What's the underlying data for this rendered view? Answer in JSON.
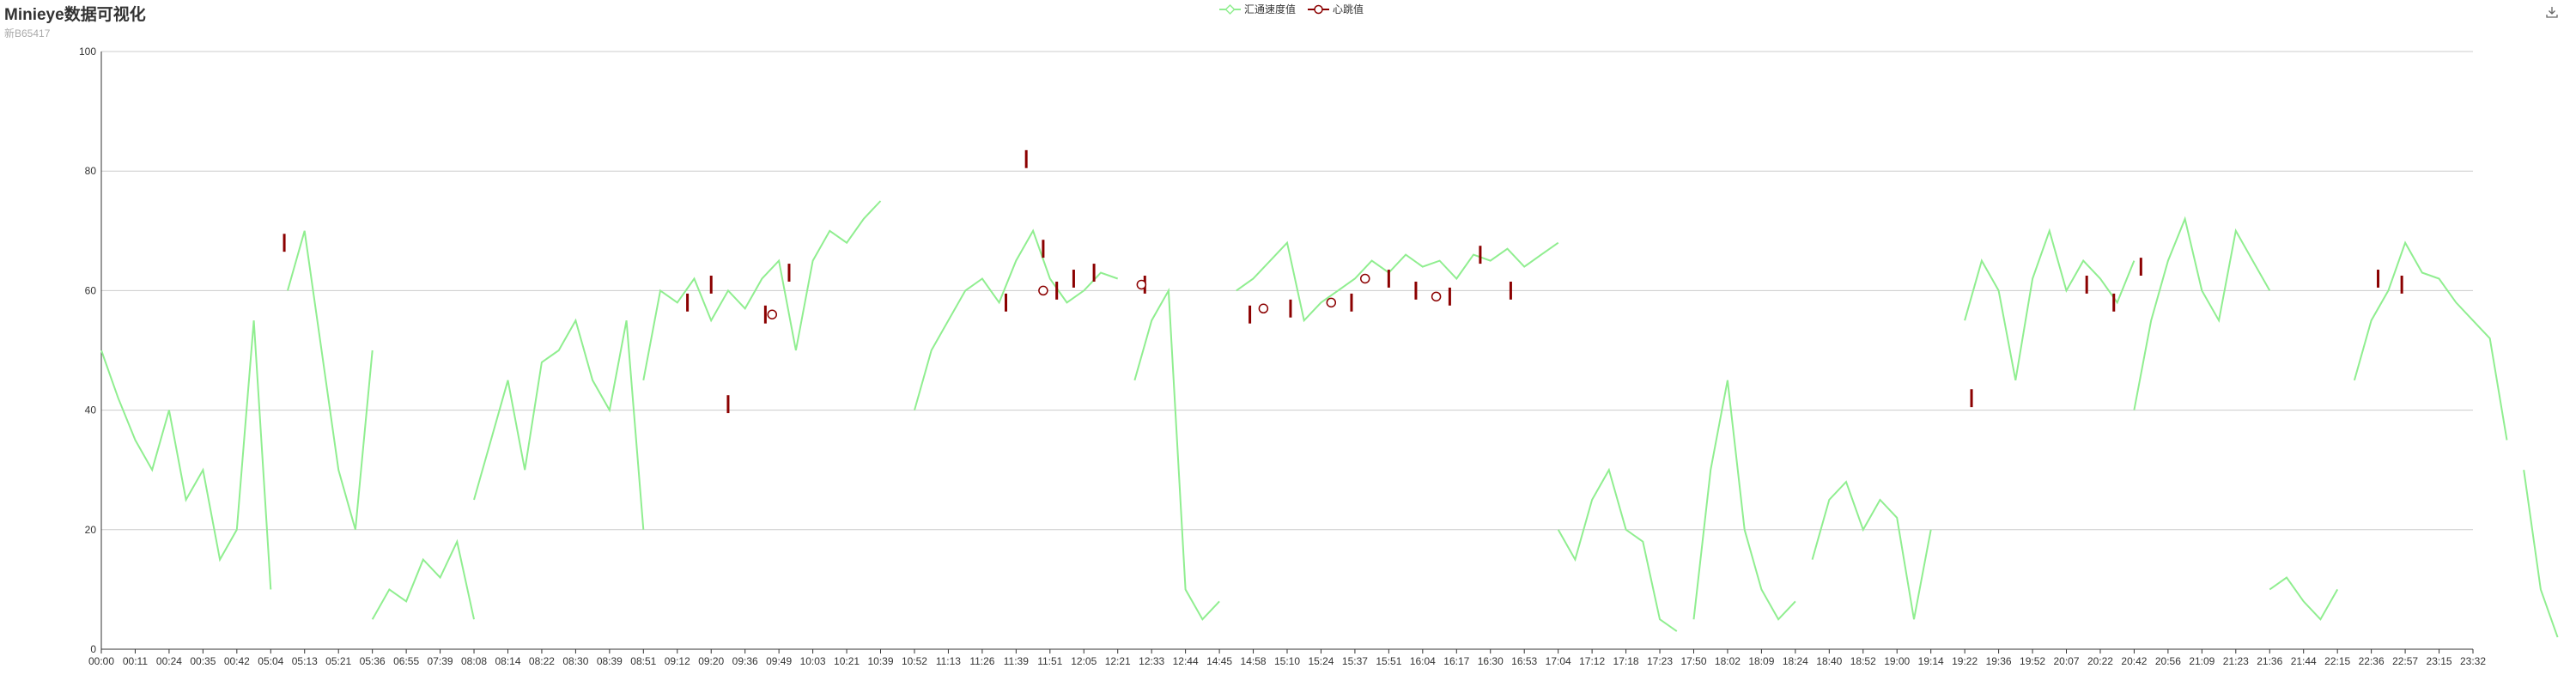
{
  "header": {
    "title": "Minieye数据可视化",
    "subtitle": "新B65417"
  },
  "legend": {
    "items": [
      {
        "label": "汇通速度值",
        "color": "#90ee90"
      },
      {
        "label": "心跳值",
        "color": "#8b0000"
      }
    ]
  },
  "toolbar": {
    "save_icon": "download-icon"
  },
  "chart_data": {
    "type": "line",
    "title": "Minieye数据可视化",
    "subtitle": "新B65417",
    "xlabel": "",
    "ylabel": "",
    "ylim": [
      0,
      100
    ],
    "yticks": [
      0,
      20,
      40,
      60,
      80,
      100
    ],
    "grid": true,
    "legend_position": "top-center",
    "xticks": [
      "00:00",
      "00:11",
      "00:24",
      "00:35",
      "00:42",
      "05:04",
      "05:13",
      "05:21",
      "05:36",
      "06:55",
      "07:39",
      "08:08",
      "08:14",
      "08:22",
      "08:30",
      "08:39",
      "08:51",
      "09:12",
      "09:20",
      "09:36",
      "09:49",
      "10:03",
      "10:21",
      "10:39",
      "10:52",
      "11:13",
      "11:26",
      "11:39",
      "11:51",
      "12:05",
      "12:21",
      "12:33",
      "12:44",
      "14:45",
      "14:58",
      "15:10",
      "15:24",
      "15:37",
      "15:51",
      "16:04",
      "16:17",
      "16:30",
      "16:53",
      "17:04",
      "17:12",
      "17:18",
      "17:23",
      "17:50",
      "18:02",
      "18:09",
      "18:24",
      "18:40",
      "18:52",
      "19:00",
      "19:14",
      "19:22",
      "19:36",
      "19:52",
      "20:07",
      "20:22",
      "20:42",
      "20:56",
      "21:09",
      "21:23",
      "21:36",
      "21:44",
      "22:15",
      "22:36",
      "22:57",
      "23:15",
      "23:32"
    ],
    "series": [
      {
        "name": "汇通速度值",
        "color": "#90ee90",
        "segments": [
          {
            "x": [
              0,
              0.5,
              1,
              1.5,
              2,
              2.5,
              3,
              3.5,
              4,
              4.5,
              5
            ],
            "y": [
              50,
              42,
              35,
              30,
              40,
              25,
              30,
              15,
              20,
              55,
              10
            ]
          },
          {
            "x": [
              5.5,
              6,
              6.5,
              7,
              7.5,
              8
            ],
            "y": [
              60,
              70,
              50,
              30,
              20,
              50
            ]
          },
          {
            "x": [
              8,
              8.5,
              9,
              9.5,
              10,
              10.5,
              11
            ],
            "y": [
              5,
              10,
              8,
              15,
              12,
              18,
              5
            ]
          },
          {
            "x": [
              11,
              11.5,
              12,
              12.5,
              13,
              13.5,
              14,
              14.5,
              15,
              15.5,
              16
            ],
            "y": [
              25,
              35,
              45,
              30,
              48,
              50,
              55,
              45,
              40,
              55,
              20
            ]
          },
          {
            "x": [
              16,
              16.5,
              17,
              17.5,
              18,
              18.5,
              19,
              19.5,
              20,
              20.5,
              21,
              21.5,
              22,
              22.5,
              23
            ],
            "y": [
              45,
              60,
              58,
              62,
              55,
              60,
              57,
              62,
              65,
              50,
              65,
              70,
              68,
              72,
              75
            ]
          },
          {
            "x": [
              24,
              24.5,
              25,
              25.5,
              26,
              26.5,
              27,
              27.5,
              28,
              28.5,
              29,
              29.5,
              30
            ],
            "y": [
              40,
              50,
              55,
              60,
              62,
              58,
              65,
              70,
              62,
              58,
              60,
              63,
              62
            ]
          },
          {
            "x": [
              30.5,
              31,
              31.5,
              32,
              32.5,
              33
            ],
            "y": [
              45,
              55,
              60,
              10,
              5,
              8
            ]
          },
          {
            "x": [
              33.5,
              34,
              34.5,
              35,
              35.5,
              36,
              36.5,
              37,
              37.5,
              38,
              38.5,
              39,
              39.5,
              40,
              40.5,
              41,
              41.5,
              42,
              42.5,
              43
            ],
            "y": [
              60,
              62,
              65,
              68,
              55,
              58,
              60,
              62,
              65,
              63,
              66,
              64,
              65,
              62,
              66,
              65,
              67,
              64,
              66,
              68
            ]
          },
          {
            "x": [
              43,
              43.5,
              44,
              44.5,
              45,
              45.5,
              46,
              46.5
            ],
            "y": [
              20,
              15,
              25,
              30,
              20,
              18,
              5,
              3
            ]
          },
          {
            "x": [
              47,
              47.5,
              48,
              48.5,
              49,
              49.5,
              50
            ],
            "y": [
              5,
              30,
              45,
              20,
              10,
              5,
              8
            ]
          },
          {
            "x": [
              50.5,
              51,
              51.5,
              52,
              52.5,
              53,
              53.5,
              54
            ],
            "y": [
              15,
              25,
              28,
              20,
              25,
              22,
              5,
              20
            ]
          },
          {
            "x": [
              55,
              55.5,
              56,
              56.5,
              57,
              57.5,
              58,
              58.5,
              59,
              59.5,
              60
            ],
            "y": [
              55,
              65,
              60,
              45,
              62,
              70,
              60,
              65,
              62,
              58,
              65
            ]
          },
          {
            "x": [
              60,
              60.5,
              61,
              61.5,
              62,
              62.5,
              63,
              63.5,
              64
            ],
            "y": [
              40,
              55,
              65,
              72,
              60,
              55,
              70,
              65,
              60
            ]
          },
          {
            "x": [
              64,
              64.5,
              65,
              65.5,
              66
            ],
            "y": [
              10,
              12,
              8,
              5,
              10
            ]
          },
          {
            "x": [
              66.5,
              67,
              67.5,
              68,
              68.5,
              69,
              69.5,
              70,
              70.5,
              71
            ],
            "y": [
              45,
              55,
              60,
              68,
              63,
              62,
              58,
              55,
              52,
              35
            ]
          },
          {
            "x": [
              71.5,
              72,
              72.5
            ],
            "y": [
              30,
              10,
              2
            ]
          }
        ]
      },
      {
        "name": "心跳值",
        "color": "#8b0000",
        "points": [
          {
            "x": 5.4,
            "y": 68
          },
          {
            "x": 17.3,
            "y": 58
          },
          {
            "x": 18.0,
            "y": 61
          },
          {
            "x": 18.5,
            "y": 41
          },
          {
            "x": 19.6,
            "y": 56
          },
          {
            "x": 20.3,
            "y": 63
          },
          {
            "x": 26.7,
            "y": 58
          },
          {
            "x": 27.3,
            "y": 82
          },
          {
            "x": 27.8,
            "y": 67
          },
          {
            "x": 28.2,
            "y": 60
          },
          {
            "x": 28.7,
            "y": 62
          },
          {
            "x": 29.3,
            "y": 63
          },
          {
            "x": 30.8,
            "y": 61
          },
          {
            "x": 33.9,
            "y": 56
          },
          {
            "x": 35.1,
            "y": 57
          },
          {
            "x": 36.9,
            "y": 58
          },
          {
            "x": 38.0,
            "y": 62
          },
          {
            "x": 38.8,
            "y": 60
          },
          {
            "x": 39.8,
            "y": 59
          },
          {
            "x": 40.7,
            "y": 66
          },
          {
            "x": 41.6,
            "y": 60
          },
          {
            "x": 55.2,
            "y": 42
          },
          {
            "x": 58.6,
            "y": 61
          },
          {
            "x": 59.4,
            "y": 58
          },
          {
            "x": 60.2,
            "y": 64
          },
          {
            "x": 67.2,
            "y": 62
          },
          {
            "x": 67.9,
            "y": 61
          }
        ],
        "markers": [
          {
            "x": 19.8,
            "y": 56
          },
          {
            "x": 27.8,
            "y": 60
          },
          {
            "x": 30.7,
            "y": 61
          },
          {
            "x": 34.3,
            "y": 57
          },
          {
            "x": 36.3,
            "y": 58
          },
          {
            "x": 37.3,
            "y": 62
          },
          {
            "x": 39.4,
            "y": 59
          }
        ]
      }
    ]
  }
}
